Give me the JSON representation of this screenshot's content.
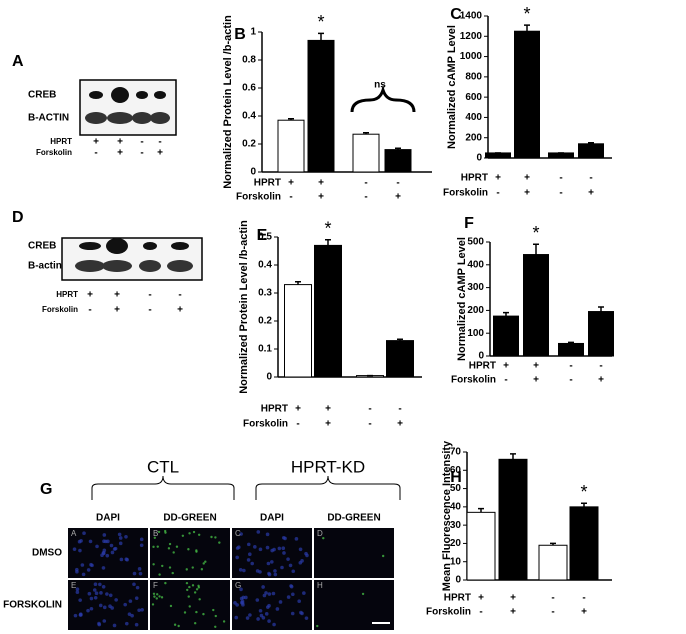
{
  "chart_data": [
    {
      "type": "bar",
      "panel": "B",
      "ylabel": "Normalized Protein Level /b-actin",
      "values": [
        0.37,
        0.94,
        0.27,
        0.16
      ],
      "errors": [
        0.01,
        0.05,
        0.01,
        0.01
      ],
      "colors": [
        "#ffffff",
        "#000000",
        "#ffffff",
        "#000000"
      ],
      "ylim": [
        0,
        1
      ],
      "yticks": [
        0,
        0.2,
        0.4,
        0.6,
        0.8,
        1
      ],
      "annotations": [
        "*",
        "ns"
      ],
      "conditions": [
        {
          "name": "HPRT",
          "signs": [
            "+",
            "+",
            "-",
            "-"
          ]
        },
        {
          "name": "Forskolin",
          "signs": [
            "-",
            "+",
            "-",
            "+"
          ]
        }
      ]
    },
    {
      "type": "bar",
      "panel": "C",
      "ylabel": "Normalized cAMP Level",
      "values": [
        50,
        1250,
        50,
        140
      ],
      "errors": [
        0,
        60,
        0,
        10
      ],
      "colors": [
        "#000000",
        "#000000",
        "#000000",
        "#000000"
      ],
      "ylim": [
        0,
        1400
      ],
      "yticks": [
        0,
        200,
        400,
        600,
        800,
        1000,
        1200,
        1400
      ],
      "annotations": [
        "*"
      ],
      "conditions": [
        {
          "name": "HPRT",
          "signs": [
            "+",
            "+",
            "-",
            "-"
          ]
        },
        {
          "name": "Forskolin",
          "signs": [
            "-",
            "+",
            "-",
            "+"
          ]
        }
      ]
    },
    {
      "type": "bar",
      "panel": "E",
      "ylabel": "Normalized Protein Level /b-actin",
      "values": [
        0.33,
        0.47,
        0.005,
        0.13
      ],
      "errors": [
        0.01,
        0.02,
        0,
        0.005
      ],
      "colors": [
        "#ffffff",
        "#000000",
        "#ffffff",
        "#000000"
      ],
      "ylim": [
        0,
        0.5
      ],
      "yticks": [
        0,
        0.1,
        0.2,
        0.3,
        0.4,
        0.5
      ],
      "annotations": [
        "*"
      ],
      "conditions": [
        {
          "name": "HPRT",
          "signs": [
            "+",
            "+",
            "-",
            "-"
          ]
        },
        {
          "name": "Forskolin",
          "signs": [
            "-",
            "+",
            "-",
            "+"
          ]
        }
      ]
    },
    {
      "type": "bar",
      "panel": "F",
      "ylabel": "Normalized cAMP Level",
      "values": [
        175,
        445,
        55,
        195
      ],
      "errors": [
        15,
        45,
        5,
        20
      ],
      "colors": [
        "#000000",
        "#000000",
        "#000000",
        "#000000"
      ],
      "ylim": [
        0,
        500
      ],
      "yticks": [
        0,
        100,
        200,
        300,
        400,
        500
      ],
      "annotations": [
        "*"
      ],
      "conditions": [
        {
          "name": "HPRT",
          "signs": [
            "+",
            "+",
            "-",
            "-"
          ]
        },
        {
          "name": "Forskolin",
          "signs": [
            "-",
            "+",
            "-",
            "+"
          ]
        }
      ]
    },
    {
      "type": "bar",
      "panel": "H",
      "ylabel": "Mean Fluorescence Intensity",
      "values": [
        37,
        66,
        19,
        40
      ],
      "errors": [
        2,
        3,
        1,
        2
      ],
      "colors": [
        "#ffffff",
        "#000000",
        "#ffffff",
        "#000000"
      ],
      "ylim": [
        0,
        70
      ],
      "yticks": [
        0,
        10,
        20,
        30,
        40,
        50,
        60,
        70
      ],
      "annotations": [
        "*"
      ],
      "conditions": [
        {
          "name": "HPRT",
          "signs": [
            "+",
            "+",
            "-",
            "-"
          ]
        },
        {
          "name": "Forskolin",
          "signs": [
            "-",
            "+",
            "-",
            "+"
          ]
        }
      ]
    }
  ],
  "blots": [
    {
      "panel": "A",
      "bands": [
        "CREB",
        "B-ACTIN"
      ],
      "conditions": [
        {
          "name": "HPRT",
          "signs": [
            "+",
            "+",
            "-",
            "-"
          ]
        },
        {
          "name": "Forskolin",
          "signs": [
            "-",
            "+",
            "-",
            "+"
          ]
        }
      ]
    },
    {
      "panel": "D",
      "bands": [
        "CREB",
        "B-actin"
      ],
      "conditions": [
        {
          "name": "HPRT",
          "signs": [
            "+",
            "+",
            "-",
            "-"
          ]
        },
        {
          "name": "Forskolin",
          "signs": [
            "-",
            "+",
            "-",
            "+"
          ]
        }
      ]
    }
  ],
  "imaging": {
    "panel": "G",
    "groups": [
      "CTL",
      "HPRT-KD"
    ],
    "columns": [
      "DAPI",
      "DD-GREEN",
      "DAPI",
      "DD-GREEN"
    ],
    "rows": [
      "DMSO",
      "FORSKOLIN"
    ],
    "tiles": [
      "A",
      "B",
      "C",
      "D",
      "E",
      "F",
      "G",
      "H"
    ]
  }
}
